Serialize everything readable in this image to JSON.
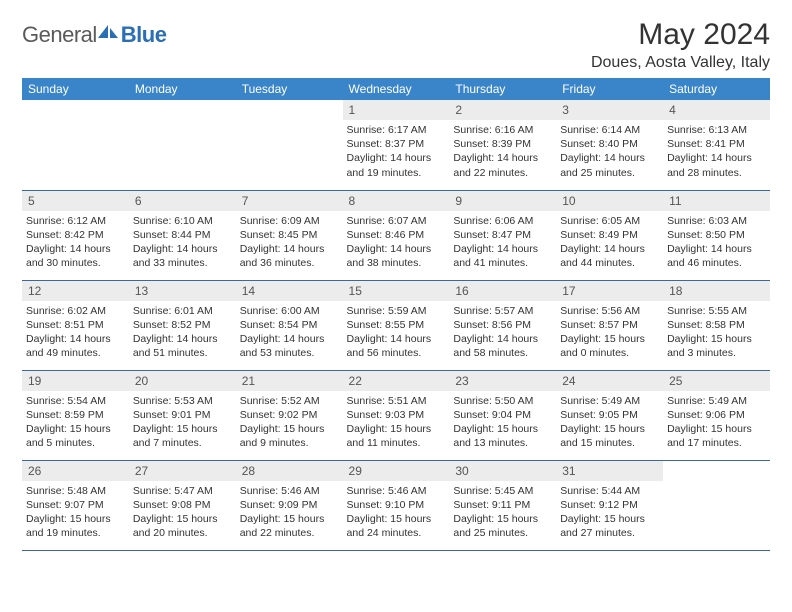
{
  "logo": {
    "text1": "General",
    "text2": "Blue"
  },
  "title": "May 2024",
  "location": "Doues, Aosta Valley, Italy",
  "colors": {
    "header_bg": "#3a85c9",
    "header_fg": "#ffffff",
    "daynum_bg": "#ececec",
    "daynum_fg": "#555555",
    "rule": "#3a6a9a",
    "logo_gray": "#5a5a5a",
    "logo_blue": "#2a6fb5"
  },
  "dayNames": [
    "Sunday",
    "Monday",
    "Tuesday",
    "Wednesday",
    "Thursday",
    "Friday",
    "Saturday"
  ],
  "weeks": [
    [
      {
        "num": "",
        "lines": []
      },
      {
        "num": "",
        "lines": []
      },
      {
        "num": "",
        "lines": []
      },
      {
        "num": "1",
        "lines": [
          "Sunrise: 6:17 AM",
          "Sunset: 8:37 PM",
          "Daylight: 14 hours",
          "and 19 minutes."
        ]
      },
      {
        "num": "2",
        "lines": [
          "Sunrise: 6:16 AM",
          "Sunset: 8:39 PM",
          "Daylight: 14 hours",
          "and 22 minutes."
        ]
      },
      {
        "num": "3",
        "lines": [
          "Sunrise: 6:14 AM",
          "Sunset: 8:40 PM",
          "Daylight: 14 hours",
          "and 25 minutes."
        ]
      },
      {
        "num": "4",
        "lines": [
          "Sunrise: 6:13 AM",
          "Sunset: 8:41 PM",
          "Daylight: 14 hours",
          "and 28 minutes."
        ]
      }
    ],
    [
      {
        "num": "5",
        "lines": [
          "Sunrise: 6:12 AM",
          "Sunset: 8:42 PM",
          "Daylight: 14 hours",
          "and 30 minutes."
        ]
      },
      {
        "num": "6",
        "lines": [
          "Sunrise: 6:10 AM",
          "Sunset: 8:44 PM",
          "Daylight: 14 hours",
          "and 33 minutes."
        ]
      },
      {
        "num": "7",
        "lines": [
          "Sunrise: 6:09 AM",
          "Sunset: 8:45 PM",
          "Daylight: 14 hours",
          "and 36 minutes."
        ]
      },
      {
        "num": "8",
        "lines": [
          "Sunrise: 6:07 AM",
          "Sunset: 8:46 PM",
          "Daylight: 14 hours",
          "and 38 minutes."
        ]
      },
      {
        "num": "9",
        "lines": [
          "Sunrise: 6:06 AM",
          "Sunset: 8:47 PM",
          "Daylight: 14 hours",
          "and 41 minutes."
        ]
      },
      {
        "num": "10",
        "lines": [
          "Sunrise: 6:05 AM",
          "Sunset: 8:49 PM",
          "Daylight: 14 hours",
          "and 44 minutes."
        ]
      },
      {
        "num": "11",
        "lines": [
          "Sunrise: 6:03 AM",
          "Sunset: 8:50 PM",
          "Daylight: 14 hours",
          "and 46 minutes."
        ]
      }
    ],
    [
      {
        "num": "12",
        "lines": [
          "Sunrise: 6:02 AM",
          "Sunset: 8:51 PM",
          "Daylight: 14 hours",
          "and 49 minutes."
        ]
      },
      {
        "num": "13",
        "lines": [
          "Sunrise: 6:01 AM",
          "Sunset: 8:52 PM",
          "Daylight: 14 hours",
          "and 51 minutes."
        ]
      },
      {
        "num": "14",
        "lines": [
          "Sunrise: 6:00 AM",
          "Sunset: 8:54 PM",
          "Daylight: 14 hours",
          "and 53 minutes."
        ]
      },
      {
        "num": "15",
        "lines": [
          "Sunrise: 5:59 AM",
          "Sunset: 8:55 PM",
          "Daylight: 14 hours",
          "and 56 minutes."
        ]
      },
      {
        "num": "16",
        "lines": [
          "Sunrise: 5:57 AM",
          "Sunset: 8:56 PM",
          "Daylight: 14 hours",
          "and 58 minutes."
        ]
      },
      {
        "num": "17",
        "lines": [
          "Sunrise: 5:56 AM",
          "Sunset: 8:57 PM",
          "Daylight: 15 hours",
          "and 0 minutes."
        ]
      },
      {
        "num": "18",
        "lines": [
          "Sunrise: 5:55 AM",
          "Sunset: 8:58 PM",
          "Daylight: 15 hours",
          "and 3 minutes."
        ]
      }
    ],
    [
      {
        "num": "19",
        "lines": [
          "Sunrise: 5:54 AM",
          "Sunset: 8:59 PM",
          "Daylight: 15 hours",
          "and 5 minutes."
        ]
      },
      {
        "num": "20",
        "lines": [
          "Sunrise: 5:53 AM",
          "Sunset: 9:01 PM",
          "Daylight: 15 hours",
          "and 7 minutes."
        ]
      },
      {
        "num": "21",
        "lines": [
          "Sunrise: 5:52 AM",
          "Sunset: 9:02 PM",
          "Daylight: 15 hours",
          "and 9 minutes."
        ]
      },
      {
        "num": "22",
        "lines": [
          "Sunrise: 5:51 AM",
          "Sunset: 9:03 PM",
          "Daylight: 15 hours",
          "and 11 minutes."
        ]
      },
      {
        "num": "23",
        "lines": [
          "Sunrise: 5:50 AM",
          "Sunset: 9:04 PM",
          "Daylight: 15 hours",
          "and 13 minutes."
        ]
      },
      {
        "num": "24",
        "lines": [
          "Sunrise: 5:49 AM",
          "Sunset: 9:05 PM",
          "Daylight: 15 hours",
          "and 15 minutes."
        ]
      },
      {
        "num": "25",
        "lines": [
          "Sunrise: 5:49 AM",
          "Sunset: 9:06 PM",
          "Daylight: 15 hours",
          "and 17 minutes."
        ]
      }
    ],
    [
      {
        "num": "26",
        "lines": [
          "Sunrise: 5:48 AM",
          "Sunset: 9:07 PM",
          "Daylight: 15 hours",
          "and 19 minutes."
        ]
      },
      {
        "num": "27",
        "lines": [
          "Sunrise: 5:47 AM",
          "Sunset: 9:08 PM",
          "Daylight: 15 hours",
          "and 20 minutes."
        ]
      },
      {
        "num": "28",
        "lines": [
          "Sunrise: 5:46 AM",
          "Sunset: 9:09 PM",
          "Daylight: 15 hours",
          "and 22 minutes."
        ]
      },
      {
        "num": "29",
        "lines": [
          "Sunrise: 5:46 AM",
          "Sunset: 9:10 PM",
          "Daylight: 15 hours",
          "and 24 minutes."
        ]
      },
      {
        "num": "30",
        "lines": [
          "Sunrise: 5:45 AM",
          "Sunset: 9:11 PM",
          "Daylight: 15 hours",
          "and 25 minutes."
        ]
      },
      {
        "num": "31",
        "lines": [
          "Sunrise: 5:44 AM",
          "Sunset: 9:12 PM",
          "Daylight: 15 hours",
          "and 27 minutes."
        ]
      },
      {
        "num": "",
        "lines": []
      }
    ]
  ]
}
